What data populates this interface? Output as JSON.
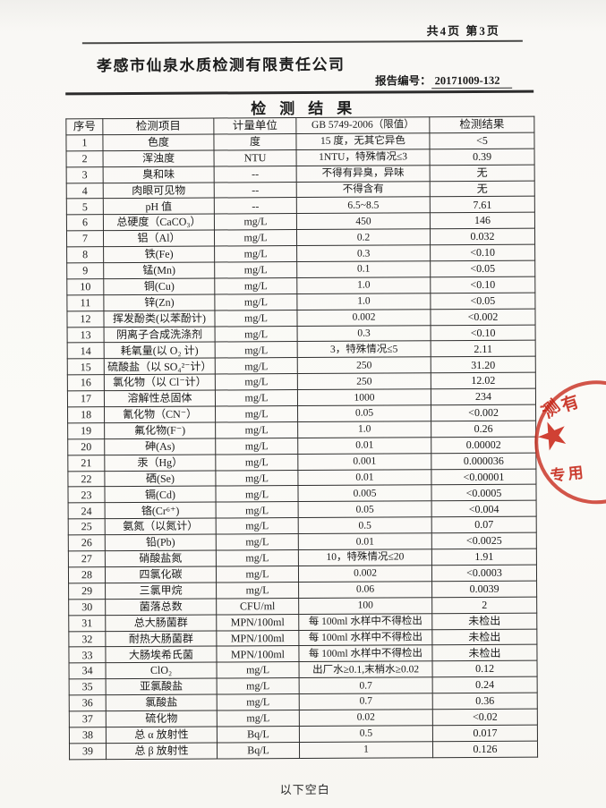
{
  "page": {
    "page_indicator": "共4页 第3页",
    "company_name": "孝感市仙泉水质检测有限责任公司",
    "report_no_label": "报告编号：",
    "report_no": "20171009-132",
    "title": "检测结果",
    "footer_note": "以下空白"
  },
  "stamp": {
    "color": "#c72618",
    "star_icon": "★",
    "fragment_top_1": "测",
    "fragment_top_2": "有",
    "fragment_bottom": "专用"
  },
  "table": {
    "headers": [
      "序号",
      "检测项目",
      "计量单位",
      "GB 5749-2006（限值）",
      "检测结果"
    ],
    "rows": [
      [
        "1",
        "色度",
        "度",
        "15 度，无其它异色",
        "<5"
      ],
      [
        "2",
        "浑浊度",
        "NTU",
        "1NTU，特殊情况≤3",
        "0.39"
      ],
      [
        "3",
        "臭和味",
        "--",
        "不得有异臭，异味",
        "无"
      ],
      [
        "4",
        "肉眼可见物",
        "--",
        "不得含有",
        "无"
      ],
      [
        "5",
        "pH 值",
        "--",
        "6.5~8.5",
        "7.61"
      ],
      [
        "6",
        "总硬度（CaCO₃）",
        "mg/L",
        "450",
        "146"
      ],
      [
        "7",
        "铝（Al）",
        "mg/L",
        "0.2",
        "0.032"
      ],
      [
        "8",
        "铁(Fe)",
        "mg/L",
        "0.3",
        "<0.10"
      ],
      [
        "9",
        "锰(Mn)",
        "mg/L",
        "0.1",
        "<0.05"
      ],
      [
        "10",
        "铜(Cu)",
        "mg/L",
        "1.0",
        "<0.10"
      ],
      [
        "11",
        "锌(Zn)",
        "mg/L",
        "1.0",
        "<0.05"
      ],
      [
        "12",
        "挥发酚类(以苯酚计)",
        "mg/L",
        "0.002",
        "<0.002"
      ],
      [
        "13",
        "阴离子合成洗涤剂",
        "mg/L",
        "0.3",
        "<0.10"
      ],
      [
        "14",
        "耗氧量(以 O₂ 计)",
        "mg/L",
        "3，特殊情况≤5",
        "2.11"
      ],
      [
        "15",
        "硫酸盐（以 SO₄²⁻计）",
        "mg/L",
        "250",
        "31.20"
      ],
      [
        "16",
        "氯化物（以 Cl⁻计）",
        "mg/L",
        "250",
        "12.02"
      ],
      [
        "17",
        "溶解性总固体",
        "mg/L",
        "1000",
        "234"
      ],
      [
        "18",
        "氰化物（CN⁻）",
        "mg/L",
        "0.05",
        "<0.002"
      ],
      [
        "19",
        "氟化物(F⁻)",
        "mg/L",
        "1.0",
        "0.26"
      ],
      [
        "20",
        "砷(As)",
        "mg/L",
        "0.01",
        "0.00002"
      ],
      [
        "21",
        "汞（Hg）",
        "mg/L",
        "0.001",
        "0.000036"
      ],
      [
        "22",
        "硒(Se)",
        "mg/L",
        "0.01",
        "<0.00001"
      ],
      [
        "23",
        "镉(Cd)",
        "mg/L",
        "0.005",
        "<0.0005"
      ],
      [
        "24",
        "铬(Cr⁶⁺)",
        "mg/L",
        "0.05",
        "<0.004"
      ],
      [
        "25",
        "氨氮（以氮计）",
        "mg/L",
        "0.5",
        "0.07"
      ],
      [
        "26",
        "铅(Pb)",
        "mg/L",
        "0.01",
        "<0.0025"
      ],
      [
        "27",
        "硝酸盐氮",
        "mg/L",
        "10，特殊情况≤20",
        "1.91"
      ],
      [
        "28",
        "四氯化碳",
        "mg/L",
        "0.002",
        "<0.0003"
      ],
      [
        "29",
        "三氯甲烷",
        "mg/L",
        "0.06",
        "0.0039"
      ],
      [
        "30",
        "菌落总数",
        "CFU/ml",
        "100",
        "2"
      ],
      [
        "31",
        "总大肠菌群",
        "MPN/100ml",
        "每 100ml 水样中不得检出",
        "未检出"
      ],
      [
        "32",
        "耐热大肠菌群",
        "MPN/100ml",
        "每 100ml 水样中不得检出",
        "未检出"
      ],
      [
        "33",
        "大肠埃希氏菌",
        "MPN/100ml",
        "每 100ml 水样中不得检出",
        "未检出"
      ],
      [
        "34",
        "ClO₂",
        "mg/L",
        "出厂水≥0.1,末梢水≥0.02",
        "0.12"
      ],
      [
        "35",
        "亚氯酸盐",
        "mg/L",
        "0.7",
        "0.24"
      ],
      [
        "36",
        "氯酸盐",
        "mg/L",
        "0.7",
        "0.36"
      ],
      [
        "37",
        "硫化物",
        "mg/L",
        "0.02",
        "<0.02"
      ],
      [
        "38",
        "总 α 放射性",
        "Bq/L",
        "0.5",
        "0.017"
      ],
      [
        "39",
        "总 β 放射性",
        "Bq/L",
        "1",
        "0.126"
      ]
    ]
  }
}
